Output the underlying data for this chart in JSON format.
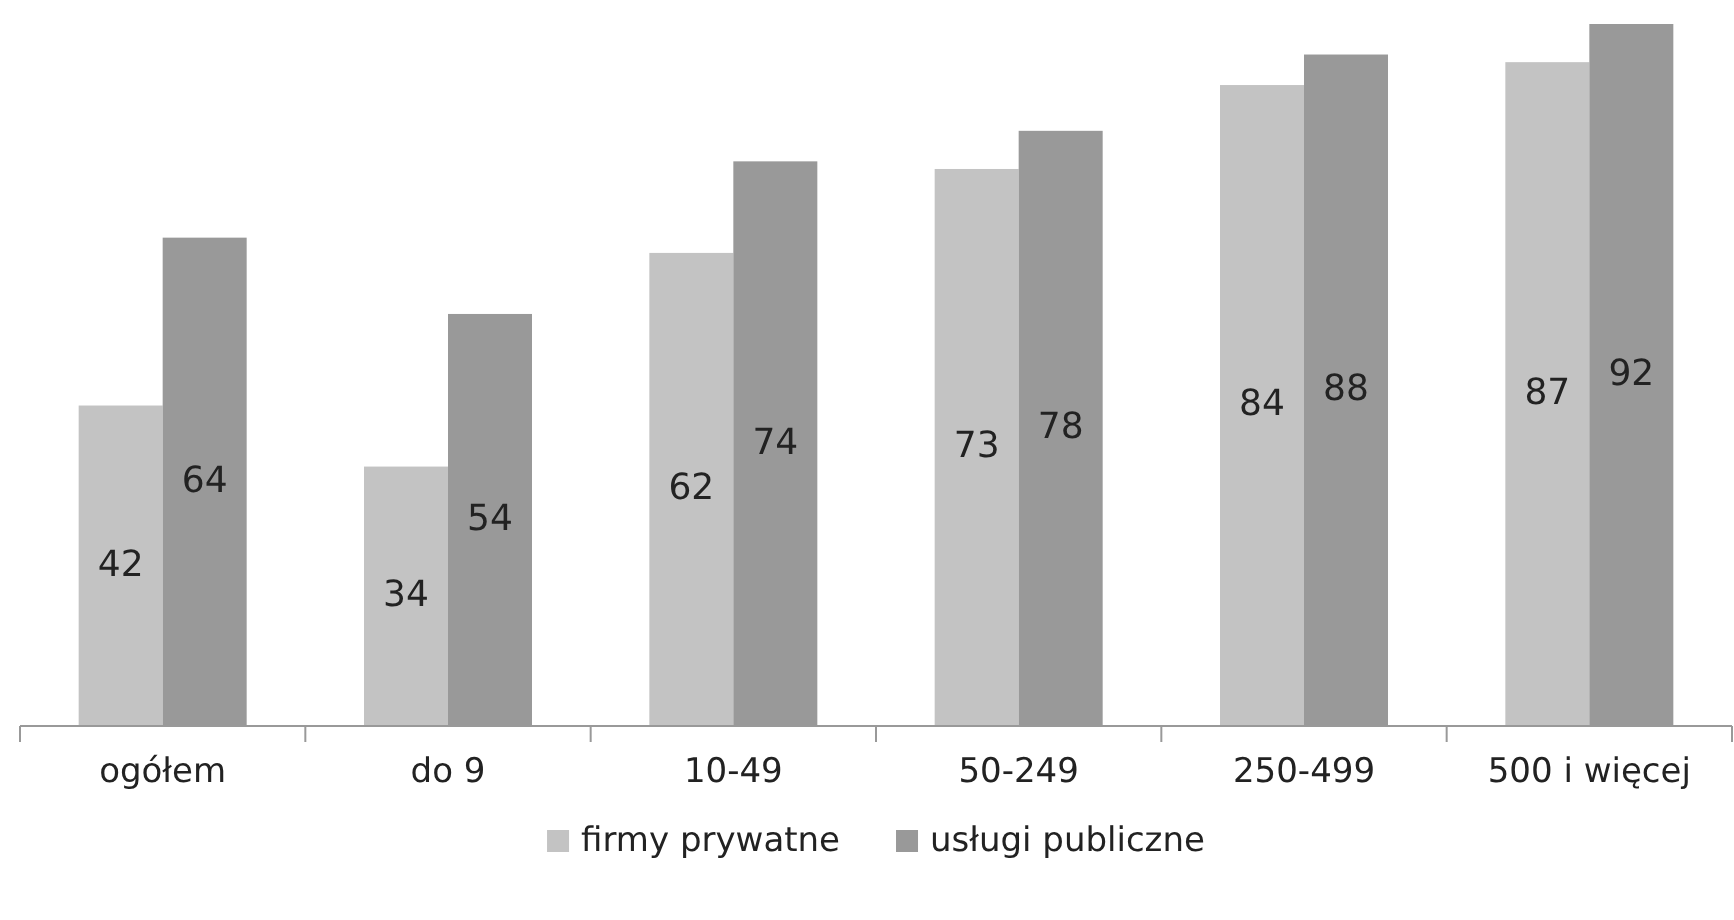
{
  "chart_data": {
    "type": "bar",
    "categories": [
      "ogółem",
      "do 9",
      "10-49",
      "50-249",
      "250-499",
      "500 i więcej"
    ],
    "series": [
      {
        "name": "firmy prywatne",
        "color": "#c3c3c3",
        "values": [
          42,
          34,
          62,
          73,
          84,
          87
        ]
      },
      {
        "name": "usługi publiczne",
        "color": "#999999",
        "values": [
          64,
          54,
          74,
          78,
          88,
          92
        ]
      }
    ],
    "data_labels": true,
    "legend": "bottom",
    "grid": false
  }
}
